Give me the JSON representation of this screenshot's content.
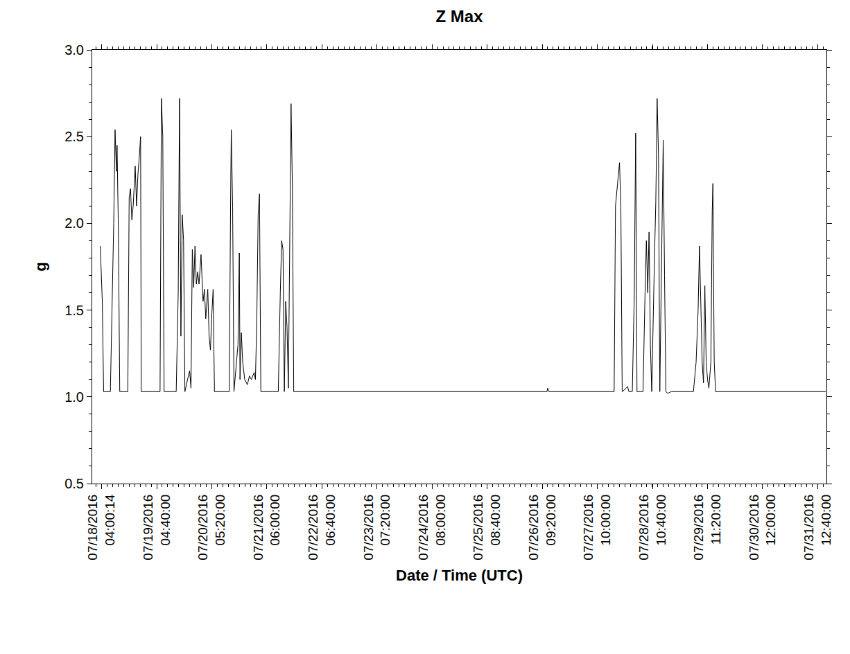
{
  "chart_data": {
    "type": "line",
    "title": "Z Max",
    "x_label": "Date / Time (UTC)",
    "y_label": "g",
    "color": "#000000",
    "grid": false,
    "x": [
      "2016-07-18 03:24",
      "2016-07-18 04:18",
      "2016-07-18 04:54",
      "2016-07-18 07:00",
      "2016-07-18 07:55",
      "2016-07-18 09:25",
      "2016-07-18 10:01",
      "2016-07-18 10:37",
      "2016-07-18 10:55",
      "2016-07-18 11:31",
      "2016-07-18 12:07",
      "2016-07-18 15:44",
      "2016-07-18 16:20",
      "2016-07-18 16:56",
      "2016-07-18 17:32",
      "2016-07-18 18:08",
      "2016-07-18 19:02",
      "2016-07-18 19:39",
      "2016-07-18 20:15",
      "2016-07-18 20:51",
      "2016-07-18 21:27",
      "2016-07-18 21:45",
      "2016-07-19 06:10",
      "2016-07-19 06:46",
      "2016-07-19 07:23",
      "2016-07-19 07:59",
      "2016-07-19 13:24",
      "2016-07-19 14:18",
      "2016-07-19 14:54",
      "2016-07-19 15:30",
      "2016-07-19 16:06",
      "2016-07-19 16:42",
      "2016-07-19 17:18",
      "2016-07-19 18:30",
      "2016-07-19 19:25",
      "2016-07-19 20:01",
      "2016-07-19 20:37",
      "2016-07-19 21:13",
      "2016-07-19 21:49",
      "2016-07-19 22:25",
      "2016-07-19 23:01",
      "2016-07-19 23:37",
      "2016-07-20 00:31",
      "2016-07-20 01:26",
      "2016-07-20 02:02",
      "2016-07-20 02:38",
      "2016-07-20 03:32",
      "2016-07-20 04:08",
      "2016-07-20 04:44",
      "2016-07-20 05:20",
      "2016-07-20 05:56",
      "2016-07-20 06:32",
      "2016-07-20 13:10",
      "2016-07-20 13:46",
      "2016-07-20 14:04",
      "2016-07-20 14:40",
      "2016-07-20 15:16",
      "2016-07-20 17:04",
      "2016-07-20 17:40",
      "2016-07-20 17:58",
      "2016-07-20 18:34",
      "2016-07-20 19:11",
      "2016-07-20 20:05",
      "2016-07-20 21:17",
      "2016-07-20 22:11",
      "2016-07-20 23:05",
      "2016-07-21 00:17",
      "2016-07-21 00:53",
      "2016-07-21 01:30",
      "2016-07-21 02:06",
      "2016-07-21 02:42",
      "2016-07-21 03:18",
      "2016-07-21 11:07",
      "2016-07-21 12:01",
      "2016-07-21 12:37",
      "2016-07-21 13:14",
      "2016-07-21 13:50",
      "2016-07-21 14:26",
      "2016-07-21 15:02",
      "2016-07-21 15:38",
      "2016-07-21 16:14",
      "2016-07-21 16:50",
      "2016-07-21 17:26",
      "2016-07-21 18:02",
      "2016-07-26 11:27",
      "2016-07-26 11:45",
      "2016-07-26 12:21",
      "2016-07-27 17:32",
      "2016-07-27 18:08",
      "2016-07-27 18:44",
      "2016-07-27 19:20",
      "2016-07-27 19:56",
      "2016-07-27 20:32",
      "2016-07-27 21:08",
      "2016-07-27 22:57",
      "2016-07-27 23:33",
      "2016-07-28 00:09",
      "2016-07-28 01:40",
      "2016-07-28 02:34",
      "2016-07-28 03:10",
      "2016-07-28 03:46",
      "2016-07-28 06:28",
      "2016-07-28 07:22",
      "2016-07-28 07:58",
      "2016-07-28 08:34",
      "2016-07-28 09:10",
      "2016-07-28 09:46",
      "2016-07-28 10:22",
      "2016-07-28 11:35",
      "2016-07-28 12:11",
      "2016-07-28 12:47",
      "2016-07-28 13:23",
      "2016-07-28 13:59",
      "2016-07-28 14:54",
      "2016-07-28 15:30",
      "2016-07-28 16:06",
      "2016-07-28 16:42",
      "2016-07-28 17:36",
      "2016-07-28 19:06",
      "2016-07-28 20:37",
      "2016-07-29 05:02",
      "2016-07-29 06:14",
      "2016-07-29 07:08",
      "2016-07-29 07:45",
      "2016-07-29 08:21",
      "2016-07-29 08:57",
      "2016-07-29 09:33",
      "2016-07-29 10:09",
      "2016-07-29 10:45",
      "2016-07-29 11:21",
      "2016-07-29 11:57",
      "2016-07-29 12:51",
      "2016-07-29 13:27",
      "2016-07-29 13:45",
      "2016-07-29 14:21",
      "2016-07-29 14:57",
      "2016-07-31 16:18"
    ],
    "values": [
      1.87,
      1.55,
      1.03,
      1.03,
      1.03,
      2.0,
      2.54,
      2.3,
      2.45,
      1.95,
      1.03,
      1.03,
      2.15,
      2.2,
      2.02,
      2.1,
      2.33,
      2.1,
      2.28,
      2.38,
      2.5,
      1.03,
      1.03,
      2.72,
      2.5,
      1.03,
      1.03,
      1.6,
      2.72,
      1.35,
      2.05,
      1.9,
      1.03,
      1.1,
      1.15,
      1.05,
      1.85,
      1.63,
      1.87,
      1.65,
      1.72,
      1.65,
      1.82,
      1.55,
      1.62,
      1.45,
      1.62,
      1.35,
      1.27,
      1.47,
      1.62,
      1.03,
      1.03,
      2.15,
      2.54,
      2.1,
      1.03,
      1.3,
      1.83,
      1.1,
      1.37,
      1.2,
      1.1,
      1.07,
      1.12,
      1.1,
      1.14,
      1.1,
      1.45,
      2.05,
      2.17,
      1.03,
      1.03,
      1.6,
      1.9,
      1.85,
      1.03,
      1.55,
      1.4,
      1.05,
      2.0,
      2.69,
      2.2,
      1.03,
      1.03,
      1.05,
      1.03,
      1.03,
      2.1,
      2.18,
      2.25,
      2.35,
      2.1,
      1.03,
      1.05,
      1.06,
      1.03,
      1.03,
      1.6,
      2.52,
      1.03,
      1.03,
      1.6,
      1.9,
      1.6,
      1.95,
      1.3,
      1.03,
      1.8,
      2.12,
      2.72,
      2.4,
      1.03,
      1.8,
      2.48,
      1.7,
      1.03,
      1.02,
      1.03,
      1.03,
      1.03,
      1.2,
      1.5,
      1.87,
      1.55,
      1.2,
      1.08,
      1.64,
      1.2,
      1.1,
      1.05,
      1.2,
      2.07,
      2.23,
      1.2,
      1.03,
      1.03
    ],
    "xlim": [
      "2016-07-17 23:47",
      "2016-07-31 16:36"
    ],
    "xticks": [
      {
        "value": "2016-07-18 04:00:14",
        "label": "07/18/2016 04:00:14"
      },
      {
        "value": "2016-07-19 04:40:00",
        "label": "07/19/2016 04:40:00"
      },
      {
        "value": "2016-07-20 05:20:00",
        "label": "07/20/2016 05:20:00"
      },
      {
        "value": "2016-07-21 06:00:00",
        "label": "07/21/2016 06:00:00"
      },
      {
        "value": "2016-07-22 06:40:00",
        "label": "07/22/2016 06:40:00"
      },
      {
        "value": "2016-07-23 07:20:00",
        "label": "07/23/2016 07:20:00"
      },
      {
        "value": "2016-07-24 08:00:00",
        "label": "07/24/2016 08:00:00"
      },
      {
        "value": "2016-07-25 08:40:00",
        "label": "07/25/2016 08:40:00"
      },
      {
        "value": "2016-07-26 09:20:00",
        "label": "07/26/2016 09:20:00"
      },
      {
        "value": "2016-07-27 10:00:00",
        "label": "07/27/2016 10:00:00"
      },
      {
        "value": "2016-07-28 10:40:00",
        "label": "07/28/2016 10:40:00"
      },
      {
        "value": "2016-07-29 11:20:00",
        "label": "07/29/2016 11:20:00"
      },
      {
        "value": "2016-07-30 12:00:00",
        "label": "07/30/2016 12:00:00"
      },
      {
        "value": "2016-07-31 12:40:00",
        "label": "07/31/2016 12:40:00"
      }
    ],
    "ylim": [
      0.5,
      3.0
    ],
    "yticks": [
      0.5,
      {
        "value": 1.0,
        "label": "1.0"
      },
      1.5,
      {
        "value": 2.0,
        "label": "2.0"
      },
      2.5,
      {
        "value": 3.0,
        "label": "3.0"
      }
    ]
  }
}
